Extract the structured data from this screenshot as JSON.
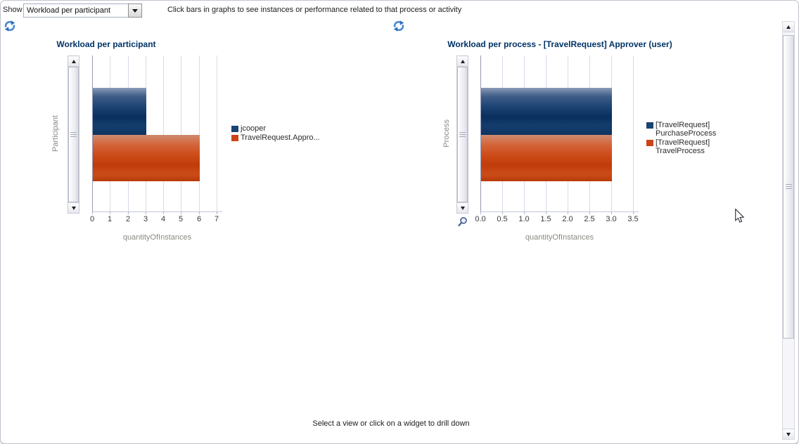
{
  "toolbar": {
    "show_label": "Show",
    "view_dropdown_value": "Workload per participant",
    "hint_text": "Click bars in graphs to see instances or performance related to that process or activity"
  },
  "footer": {
    "message": "Select a view or click on a widget to drill down"
  },
  "icons": {
    "refresh": "refresh-icon",
    "dropdown_arrow": "chevron-down-icon",
    "magnifier": "zoom-icon",
    "scroll_up": "scroll-up-arrow",
    "scroll_down": "scroll-down-arrow",
    "cursor": "mouse-cursor"
  },
  "colors": {
    "title_text": "#003366",
    "bar_blue": "#10386a",
    "bar_red": "#c64112",
    "axis_title_text": "#8a8a80",
    "gridline": "#dadae8",
    "refresh_icon_blue": "#4a8ad4"
  },
  "chart_data": [
    {
      "type": "bar",
      "orientation": "horizontal",
      "title": "Workload per participant",
      "xlabel": "quantityOfInstances",
      "ylabel": "Participant",
      "xlim": [
        0,
        7
      ],
      "xticks": [
        "0",
        "1",
        "2",
        "3",
        "4",
        "5",
        "6",
        "7"
      ],
      "grid": true,
      "legend_position": "right",
      "series": [
        {
          "name": "jcooper",
          "label_lines": [
            "jcooper"
          ],
          "value": 3,
          "color": "blue"
        },
        {
          "name": "TravelRequest.Appro...",
          "label_lines": [
            "TravelRequest.Appro..."
          ],
          "value": 6,
          "color": "red"
        }
      ]
    },
    {
      "type": "bar",
      "orientation": "horizontal",
      "title": "Workload per process - [TravelRequest] Approver (user)",
      "xlabel": "quantityOfInstances",
      "ylabel": "Process",
      "xlim": [
        0,
        3.5
      ],
      "xticks": [
        "0.0",
        "0.5",
        "1.0",
        "1.5",
        "2.0",
        "2.5",
        "3.0",
        "3.5"
      ],
      "grid": true,
      "legend_position": "right",
      "series": [
        {
          "name": "[TravelRequest] PurchaseProcess",
          "label_lines": [
            "[TravelRequest]",
            "PurchaseProcess"
          ],
          "value": 3,
          "color": "blue"
        },
        {
          "name": "[TravelRequest] TravelProcess",
          "label_lines": [
            "[TravelRequest]",
            "TravelProcess"
          ],
          "value": 3,
          "color": "red"
        }
      ]
    }
  ]
}
